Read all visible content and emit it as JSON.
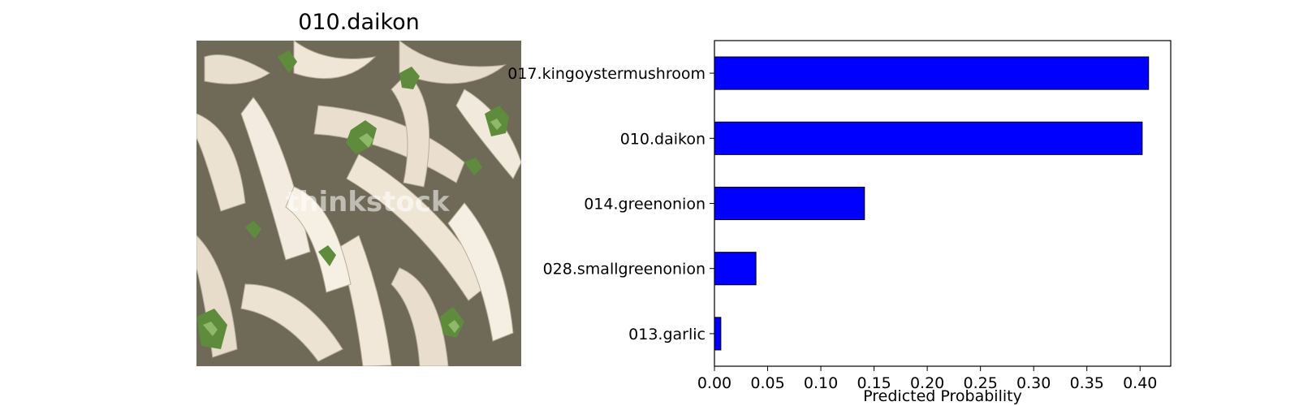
{
  "image_panel": {
    "title": "010.daikon",
    "watermark": "thinkstock"
  },
  "chart_data": {
    "type": "bar",
    "orientation": "horizontal",
    "title": "",
    "xlabel": "Predicted Probability",
    "ylabel": "",
    "categories": [
      "017.kingoystermushroom",
      "010.daikon",
      "014.greenonion",
      "028.smallgreenonion",
      "013.garlic"
    ],
    "values": [
      0.408,
      0.402,
      0.141,
      0.039,
      0.006
    ],
    "xlim": [
      0.0,
      0.4288
    ],
    "xticks": [
      "0.00",
      "0.05",
      "0.10",
      "0.15",
      "0.20",
      "0.25",
      "0.30",
      "0.35",
      "0.40"
    ],
    "bar_color": "#0000ff",
    "grid": false
  }
}
